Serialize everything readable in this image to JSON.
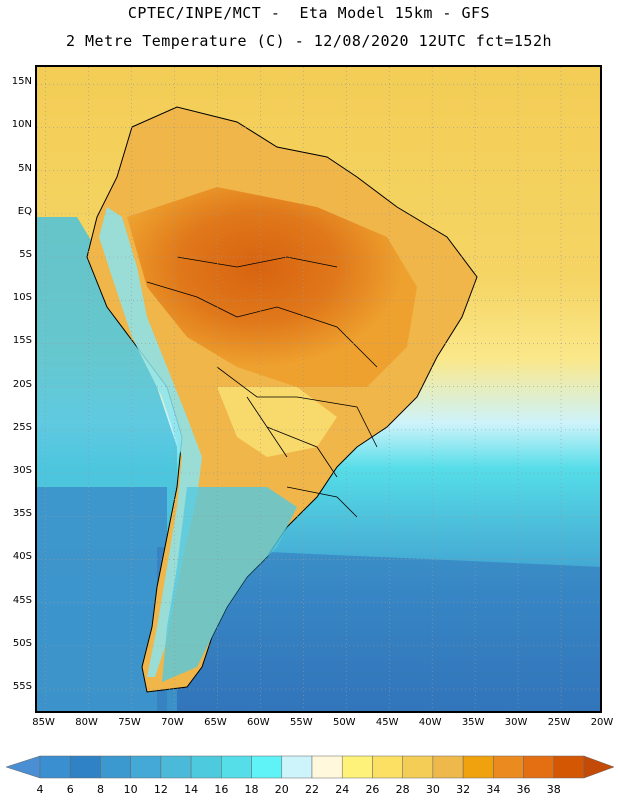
{
  "header": {
    "line1": "CPTEC/INPE/MCT -  Eta Model 15km - GFS",
    "line2": "2 Metre Temperature (C) - 12/08/2020 12UTC fct=152h"
  },
  "map": {
    "region": "South America",
    "lat_range": [
      -58,
      17
    ],
    "lon_range": [
      -86,
      -20
    ],
    "lat_labels": [
      "15N",
      "10N",
      "5N",
      "EQ",
      "5S",
      "10S",
      "15S",
      "20S",
      "25S",
      "30S",
      "35S",
      "40S",
      "45S",
      "50S",
      "55S"
    ],
    "lat_values": [
      15,
      10,
      5,
      0,
      -5,
      -10,
      -15,
      -20,
      -25,
      -30,
      -35,
      -40,
      -45,
      -50,
      -55
    ],
    "lon_labels": [
      "85W",
      "80W",
      "75W",
      "70W",
      "65W",
      "60W",
      "55W",
      "50W",
      "45W",
      "40W",
      "35W",
      "30W",
      "25W",
      "20W"
    ],
    "lon_values": [
      -85,
      -80,
      -75,
      -70,
      -65,
      -60,
      -55,
      -50,
      -45,
      -40,
      -35,
      -30,
      -25,
      -20
    ]
  },
  "colorbar": {
    "labels": [
      "4",
      "6",
      "8",
      "10",
      "12",
      "14",
      "16",
      "18",
      "20",
      "22",
      "24",
      "26",
      "28",
      "30",
      "32",
      "34",
      "36",
      "38"
    ],
    "colors": [
      "#3a8fd0",
      "#2f82c6",
      "#3c99cf",
      "#44a9d6",
      "#4bbad9",
      "#4ecadf",
      "#55dde8",
      "#5ff2f6",
      "#cdf3fb",
      "#fff8dc",
      "#fff27a",
      "#fbe063",
      "#f3cd55",
      "#efb84b",
      "#f0a10e",
      "#eb8a1e",
      "#e36f12",
      "#d45704",
      "#c83a04"
    ],
    "low_end_color": "#4a8fd3",
    "high_end_color": "#c44a08"
  }
}
